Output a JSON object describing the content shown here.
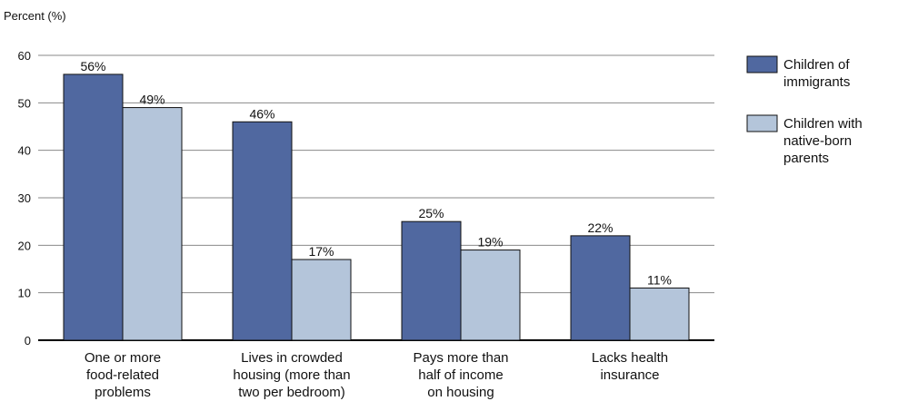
{
  "chart_data": {
    "type": "bar",
    "ylabel": "Percent (%)",
    "ylim": [
      0,
      60
    ],
    "yticks": [
      0,
      10,
      20,
      30,
      40,
      50,
      60
    ],
    "grid": true,
    "legend_position": "right",
    "categories": [
      [
        "One or more",
        "food-related",
        "problems"
      ],
      [
        "Lives in crowded",
        "housing (more than",
        "two per bedroom)"
      ],
      [
        "Pays more than",
        "half of income",
        "on housing"
      ],
      [
        "Lacks health",
        "insurance"
      ]
    ],
    "series": [
      {
        "name": [
          "Children of",
          "immigrants"
        ],
        "color": "#5068a0",
        "values": [
          56,
          46,
          25,
          22
        ],
        "labels": [
          "56%",
          "46%",
          "25%",
          "22%"
        ]
      },
      {
        "name": [
          "Children with",
          "native-born",
          "parents"
        ],
        "color": "#b4c5da",
        "values": [
          49,
          17,
          19,
          11
        ],
        "labels": [
          "49%",
          "17%",
          "19%",
          "11%"
        ]
      }
    ]
  }
}
